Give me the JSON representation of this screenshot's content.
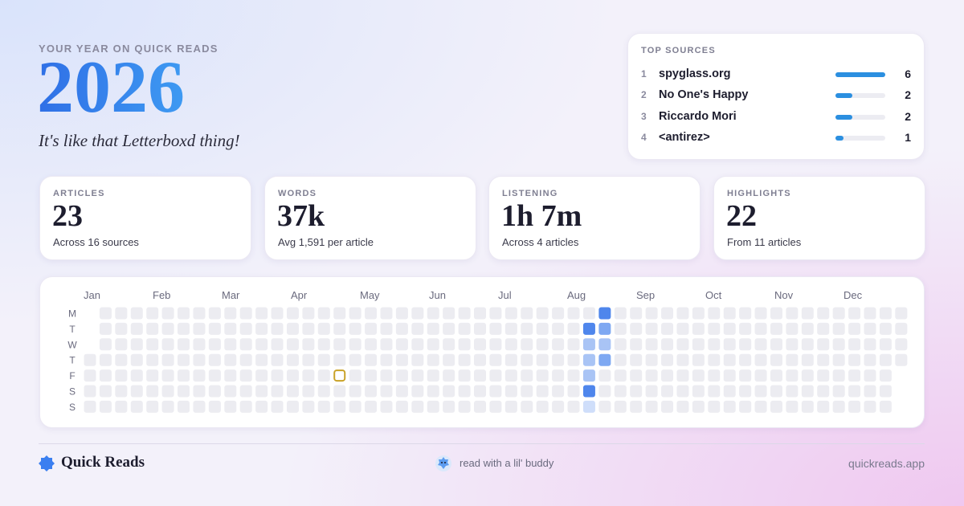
{
  "header": {
    "kicker": "YOUR YEAR ON QUICK READS",
    "year": "2026",
    "tagline": "It's like that Letterboxd thing!"
  },
  "top_sources": {
    "title": "TOP SOURCES",
    "bar_color": "#2b8fe0",
    "track_color": "#ececf2",
    "rows": [
      {
        "rank": 1,
        "name": "spyglass.org",
        "count": 6
      },
      {
        "rank": 2,
        "name": "No One's Happy",
        "count": 2
      },
      {
        "rank": 3,
        "name": "Riccardo Mori",
        "count": 2
      },
      {
        "rank": 4,
        "name": "<antirez>",
        "count": 1
      }
    ]
  },
  "stats": [
    {
      "label": "ARTICLES",
      "value": "23",
      "sub": "Across 16 sources"
    },
    {
      "label": "WORDS",
      "value": "37k",
      "sub": "Avg 1,591 per article"
    },
    {
      "label": "LISTENING",
      "value": "1h 7m",
      "sub": "Across 4 articles"
    },
    {
      "label": "HIGHLIGHTS",
      "value": "22",
      "sub": "From 11 articles"
    }
  ],
  "heatmap": {
    "months": [
      "Jan",
      "Feb",
      "Mar",
      "Apr",
      "May",
      "Jun",
      "Jul",
      "Aug",
      "Sep",
      "Oct",
      "Nov",
      "Dec"
    ],
    "days": [
      "M",
      "T",
      "W",
      "T",
      "F",
      "S",
      "S"
    ],
    "level_colors": [
      "#ececf1",
      "#cfdefa",
      "#a9c4f5",
      "#7ea8f2",
      "#4f86ec"
    ],
    "outline_color": "#c9a227",
    "outlined": {
      "week": 16,
      "day": 4
    },
    "weeks": [
      [
        null,
        null,
        null,
        0,
        0,
        0,
        0
      ],
      [
        0,
        0,
        0,
        0,
        0,
        0,
        0
      ],
      [
        0,
        0,
        0,
        0,
        0,
        0,
        0
      ],
      [
        0,
        0,
        0,
        0,
        0,
        0,
        0
      ],
      [
        0,
        0,
        0,
        0,
        0,
        0,
        0
      ],
      [
        0,
        0,
        0,
        0,
        0,
        0,
        0
      ],
      [
        0,
        0,
        0,
        0,
        0,
        0,
        0
      ],
      [
        0,
        0,
        0,
        0,
        0,
        0,
        0
      ],
      [
        0,
        0,
        0,
        0,
        0,
        0,
        0
      ],
      [
        0,
        0,
        0,
        0,
        0,
        0,
        0
      ],
      [
        0,
        0,
        0,
        0,
        0,
        0,
        0
      ],
      [
        0,
        0,
        0,
        0,
        0,
        0,
        0
      ],
      [
        0,
        0,
        0,
        0,
        0,
        0,
        0
      ],
      [
        0,
        0,
        0,
        0,
        0,
        0,
        0
      ],
      [
        0,
        0,
        0,
        0,
        0,
        0,
        0
      ],
      [
        0,
        0,
        0,
        0,
        0,
        0,
        0
      ],
      [
        0,
        0,
        0,
        0,
        0,
        0,
        0
      ],
      [
        0,
        0,
        0,
        0,
        0,
        0,
        0
      ],
      [
        0,
        0,
        0,
        0,
        0,
        0,
        0
      ],
      [
        0,
        0,
        0,
        0,
        0,
        0,
        0
      ],
      [
        0,
        0,
        0,
        0,
        0,
        0,
        0
      ],
      [
        0,
        0,
        0,
        0,
        0,
        0,
        0
      ],
      [
        0,
        0,
        0,
        0,
        0,
        0,
        0
      ],
      [
        0,
        0,
        0,
        0,
        0,
        0,
        0
      ],
      [
        0,
        0,
        0,
        0,
        0,
        0,
        0
      ],
      [
        0,
        0,
        0,
        0,
        0,
        0,
        0
      ],
      [
        0,
        0,
        0,
        0,
        0,
        0,
        0
      ],
      [
        0,
        0,
        0,
        0,
        0,
        0,
        0
      ],
      [
        0,
        0,
        0,
        0,
        0,
        0,
        0
      ],
      [
        0,
        0,
        0,
        0,
        0,
        0,
        0
      ],
      [
        0,
        0,
        0,
        0,
        0,
        0,
        0
      ],
      [
        0,
        0,
        0,
        0,
        0,
        0,
        0
      ],
      [
        0,
        4,
        2,
        2,
        2,
        4,
        1
      ],
      [
        4,
        3,
        2,
        3,
        0,
        0,
        0
      ],
      [
        0,
        0,
        0,
        0,
        0,
        0,
        0
      ],
      [
        0,
        0,
        0,
        0,
        0,
        0,
        0
      ],
      [
        0,
        0,
        0,
        0,
        0,
        0,
        0
      ],
      [
        0,
        0,
        0,
        0,
        0,
        0,
        0
      ],
      [
        0,
        0,
        0,
        0,
        0,
        0,
        0
      ],
      [
        0,
        0,
        0,
        0,
        0,
        0,
        0
      ],
      [
        0,
        0,
        0,
        0,
        0,
        0,
        0
      ],
      [
        0,
        0,
        0,
        0,
        0,
        0,
        0
      ],
      [
        0,
        0,
        0,
        0,
        0,
        0,
        0
      ],
      [
        0,
        0,
        0,
        0,
        0,
        0,
        0
      ],
      [
        0,
        0,
        0,
        0,
        0,
        0,
        0
      ],
      [
        0,
        0,
        0,
        0,
        0,
        0,
        0
      ],
      [
        0,
        0,
        0,
        0,
        0,
        0,
        0
      ],
      [
        0,
        0,
        0,
        0,
        0,
        0,
        0
      ],
      [
        0,
        0,
        0,
        0,
        0,
        0,
        0
      ],
      [
        0,
        0,
        0,
        0,
        0,
        0,
        0
      ],
      [
        0,
        0,
        0,
        0,
        0,
        0,
        0
      ],
      [
        0,
        0,
        0,
        0,
        0,
        0,
        0
      ],
      [
        0,
        0,
        0,
        0,
        null,
        null,
        null
      ]
    ]
  },
  "footer": {
    "brand": "Quick Reads",
    "tagline": "read with a lil' buddy",
    "url": "quickreads.app"
  }
}
